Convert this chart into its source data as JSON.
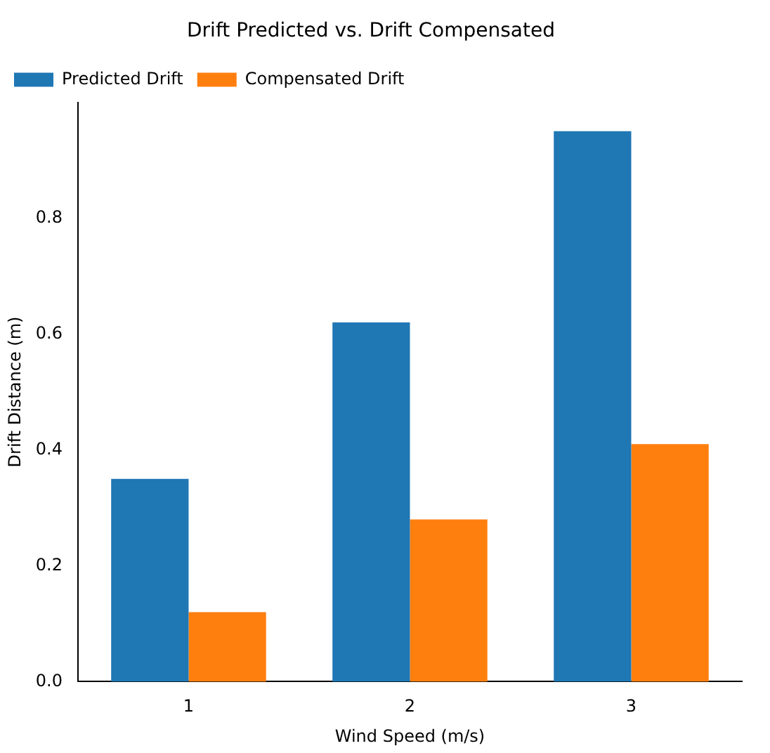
{
  "chart_data": {
    "type": "bar",
    "title": "Drift Predicted vs. Drift Compensated",
    "xlabel": "Wind Speed (m/s)",
    "ylabel": "Drift Distance (m)",
    "categories": [
      "1",
      "2",
      "3"
    ],
    "series": [
      {
        "name": "Predicted Drift",
        "color": "#1f77b4",
        "values": [
          0.35,
          0.62,
          0.95
        ]
      },
      {
        "name": "Compensated Drift",
        "color": "#ff7f0e",
        "values": [
          0.12,
          0.28,
          0.41
        ]
      }
    ],
    "ylim": [
      0,
      1.0
    ],
    "yticks": [
      {
        "value": 0,
        "label": "0.0"
      },
      {
        "value": 0.2,
        "label": "0.2"
      },
      {
        "value": 0.4,
        "label": "0.4"
      },
      {
        "value": 0.6,
        "label": "0.6"
      },
      {
        "value": 0.8,
        "label": "0.8"
      }
    ],
    "grid": false,
    "legend": "top left"
  }
}
